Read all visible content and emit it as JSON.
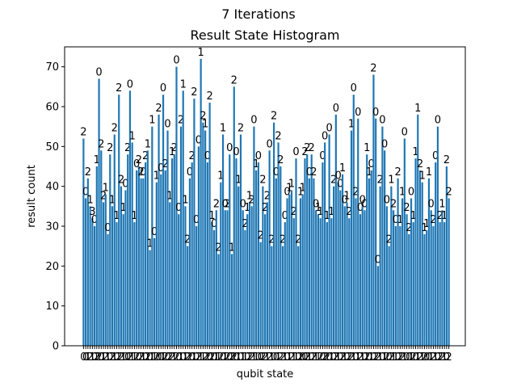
{
  "chart_data": {
    "type": "bar",
    "suptitle": "7 Iterations",
    "title": "Result State Histogram",
    "xlabel": "qubit state",
    "ylabel": "result count",
    "ylim": [
      0,
      75
    ],
    "yticks": [
      0,
      10,
      20,
      30,
      40,
      50,
      60,
      70
    ],
    "bar_color": "#1f77b4",
    "series": [
      {
        "values": [
          52,
          37,
          42,
          35,
          32,
          30,
          45,
          67,
          49,
          36,
          38,
          28,
          48,
          35,
          53,
          31,
          63,
          40,
          33,
          39,
          48,
          64,
          51,
          31,
          44,
          45,
          42,
          42,
          46,
          49,
          24,
          55,
          27,
          41,
          58,
          43,
          63,
          44,
          54,
          36,
          47,
          48,
          70,
          33,
          55,
          64,
          35,
          25,
          42,
          46,
          62,
          30,
          50,
          72,
          56,
          54,
          46,
          61,
          31,
          29,
          34,
          23,
          41,
          53,
          34,
          34,
          48,
          23,
          65,
          47,
          40,
          53,
          34,
          29,
          33,
          36,
          35,
          55,
          44,
          46,
          26,
          40,
          33,
          36,
          49,
          25,
          56,
          42,
          51,
          45,
          25,
          31,
          37,
          38,
          39,
          32,
          47,
          25,
          37,
          38,
          47,
          48,
          42,
          48,
          42,
          34,
          33,
          32,
          46,
          51,
          31,
          53,
          32,
          40,
          58,
          41,
          39,
          43,
          35,
          36,
          32,
          54,
          63,
          37,
          57,
          33,
          35,
          34,
          48,
          42,
          44,
          68,
          57,
          20,
          40,
          55,
          49,
          35,
          25,
          40,
          34,
          30,
          42,
          30,
          37,
          52,
          33,
          28,
          37,
          31,
          47,
          58,
          44,
          41,
          28,
          29,
          42,
          34,
          30,
          46,
          55,
          31,
          34,
          31,
          45,
          37
        ]
      }
    ],
    "bar_labels": [
      "2",
      "0",
      "2",
      "1",
      "3",
      "0",
      "1",
      "0",
      "2",
      "2",
      "1",
      "0",
      "2",
      "1",
      "2",
      "1",
      "2",
      "2",
      "1",
      "0",
      "2",
      "0",
      "1",
      "1",
      "0",
      "2",
      "2",
      "0",
      "2",
      "1",
      "1",
      "1",
      "0",
      "1",
      "2",
      "0",
      "0",
      "2",
      "0",
      "1",
      "1",
      "2",
      "0",
      "0",
      "2",
      "1",
      "1",
      "2",
      "0",
      "2",
      "2",
      "0",
      "0",
      "1",
      "2",
      "1",
      "0",
      "2",
      "1",
      "0",
      "2",
      "2",
      "1",
      "1",
      "0",
      "2",
      "0",
      "1",
      "2",
      "0",
      "1",
      "2",
      "0",
      "2",
      "1",
      "1",
      "2",
      "0",
      "1",
      "0",
      "2",
      "2",
      "2",
      "2",
      "0",
      "2",
      "2",
      "0",
      "2",
      "2",
      "2",
      "0",
      "0",
      "1",
      "1",
      "2",
      "0",
      "2",
      "1",
      "1",
      "2",
      "2",
      "0",
      "2",
      "2",
      "0",
      "1",
      "1",
      "0",
      "0",
      "1",
      "0",
      "1",
      "2",
      "0",
      "0",
      "0",
      "1",
      "0",
      "1",
      "2",
      "1",
      "0",
      "2",
      "0",
      "0",
      "0",
      "0",
      "1",
      "1",
      "0",
      "2",
      "0",
      "0",
      "2",
      "0",
      "0",
      "0",
      "2",
      "1",
      "2",
      "0",
      "2",
      "1",
      "1",
      "0",
      "2",
      "2",
      "0",
      "1",
      "1",
      "1",
      "2",
      "1",
      "1",
      "1",
      "1",
      "0",
      "2",
      "0",
      "0",
      "2",
      "1",
      "1",
      "2",
      "2"
    ],
    "x_tick_labels": [
      "0",
      "0",
      "1",
      "2",
      "1",
      "0",
      "2",
      "2",
      "0",
      "1",
      "2",
      "1",
      "0",
      "2",
      "1",
      "0",
      "2",
      "2",
      "1",
      "0",
      "0",
      "2",
      "1",
      "1",
      "2",
      "0",
      "2",
      "1",
      "0",
      "2",
      "0",
      "1",
      "1",
      "2",
      "0",
      "0",
      "1",
      "2",
      "0",
      "2",
      "2",
      "1",
      "2",
      "0",
      "1",
      "0",
      "1",
      "2",
      "2",
      "0",
      "1",
      "0",
      "2",
      "1",
      "1",
      "2",
      "2",
      "0",
      "2",
      "0",
      "1",
      "1",
      "2",
      "0",
      "1",
      "2",
      "0",
      "2",
      "2",
      "0",
      "1",
      "0",
      "1",
      "1",
      "0",
      "2",
      "2",
      "1",
      "1",
      "0",
      "0",
      "2",
      "2",
      "1",
      "2",
      "1",
      "0",
      "0",
      "1",
      "2",
      "2",
      "1",
      "0",
      "1",
      "2",
      "1",
      "1",
      "0",
      "2",
      "0",
      "0",
      "2",
      "1",
      "0",
      "2",
      "1",
      "1",
      "2",
      "0",
      "2",
      "2",
      "0",
      "1",
      "0",
      "2",
      "1",
      "0",
      "2",
      "1",
      "0",
      "2",
      "2",
      "1",
      "0",
      "1",
      "2",
      "1",
      "0",
      "2",
      "0",
      "1",
      "0",
      "2",
      "2",
      "1",
      "0",
      "1",
      "2",
      "0",
      "2",
      "1",
      "1",
      "0",
      "2",
      "2",
      "1",
      "0",
      "0",
      "1",
      "2",
      "0",
      "1",
      "2",
      "1",
      "2",
      "0",
      "0",
      "1",
      "2",
      "1",
      "0",
      "2",
      "2",
      "1",
      "0",
      "2"
    ]
  }
}
